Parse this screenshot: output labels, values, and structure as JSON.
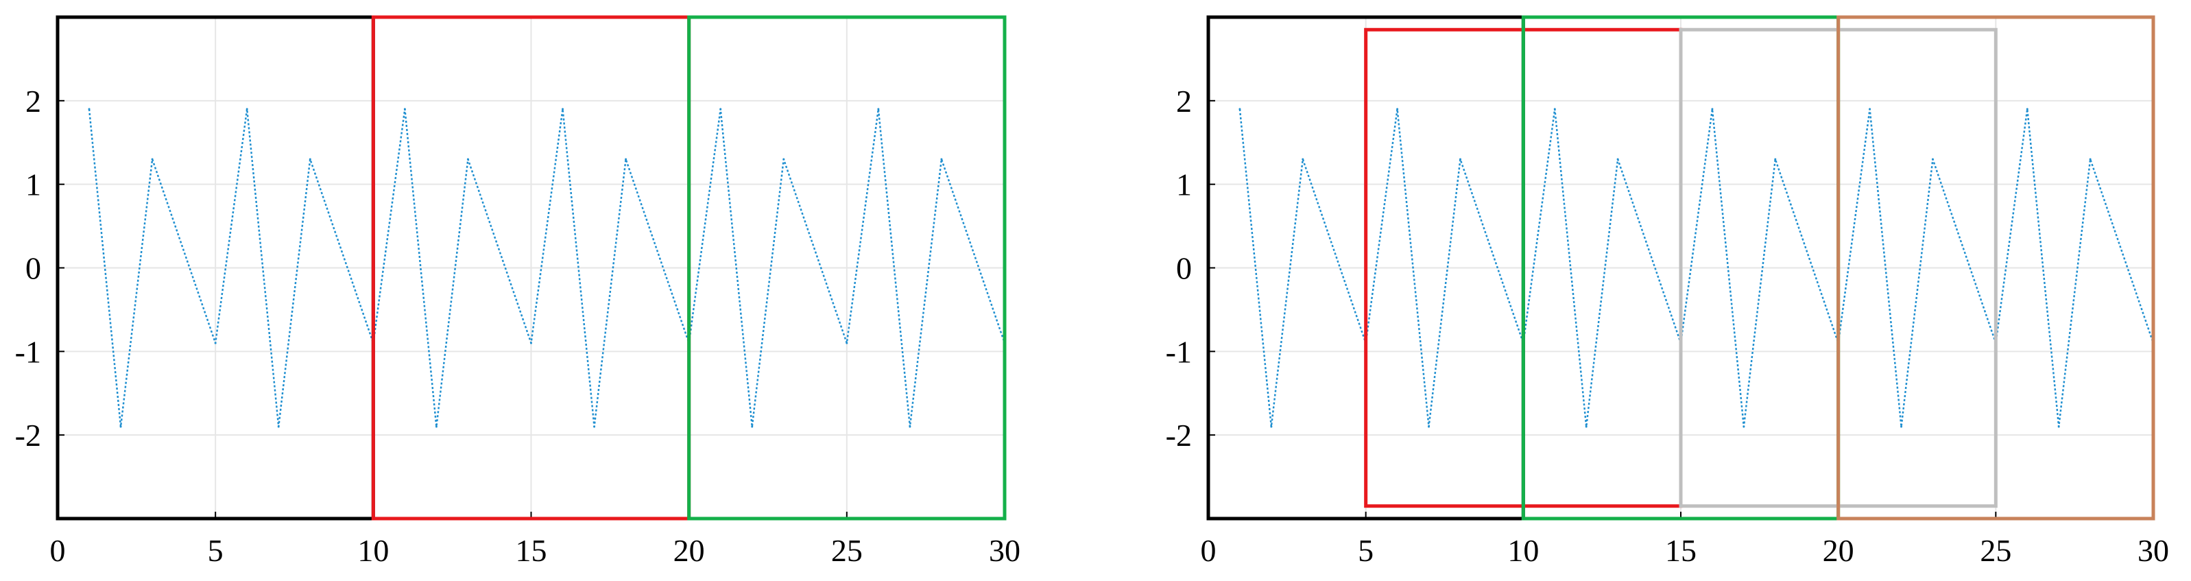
{
  "charts": [
    {
      "type": "line",
      "title": "",
      "xlabel": "",
      "ylabel": "",
      "xlim": [
        0,
        30
      ],
      "ylim": [
        -3,
        3
      ],
      "grid": true,
      "xticks": [
        0,
        5,
        10,
        15,
        20,
        25,
        30
      ],
      "xtick_labels": [
        "0",
        "5",
        "10",
        "15",
        "20",
        "25",
        "30"
      ],
      "yticks": [
        -2,
        -1,
        0,
        1,
        2
      ],
      "ytick_labels": [
        "-2",
        "-1",
        "0",
        "1",
        "2"
      ],
      "series_color": "#1f8fd0",
      "windows": [
        {
          "x_start": 0,
          "x_end": 10,
          "y_start": -3,
          "y_end": 3,
          "color": "#000000"
        },
        {
          "x_start": 10,
          "x_end": 20,
          "y_start": -3,
          "y_end": 3,
          "color": "#e8191e"
        },
        {
          "x_start": 20,
          "x_end": 30,
          "y_start": -3,
          "y_end": 3,
          "color": "#14b04a"
        }
      ]
    },
    {
      "type": "line",
      "title": "",
      "xlabel": "",
      "ylabel": "",
      "xlim": [
        0,
        30
      ],
      "ylim": [
        -3,
        3
      ],
      "grid": true,
      "xticks": [
        0,
        5,
        10,
        15,
        20,
        25,
        30
      ],
      "xtick_labels": [
        "0",
        "5",
        "10",
        "15",
        "20",
        "25",
        "30"
      ],
      "yticks": [
        -2,
        -1,
        0,
        1,
        2
      ],
      "ytick_labels": [
        "-2",
        "-1",
        "0",
        "1",
        "2"
      ],
      "series_color": "#1f8fd0",
      "windows": [
        {
          "x_start": 0,
          "x_end": 10,
          "y_start": -3,
          "y_end": 3,
          "color": "#000000"
        },
        {
          "x_start": 5,
          "x_end": 15,
          "y_start": -2.85,
          "y_end": 2.85,
          "color": "#e8191e"
        },
        {
          "x_start": 10,
          "x_end": 20,
          "y_start": -3,
          "y_end": 3,
          "color": "#14b04a"
        },
        {
          "x_start": 15,
          "x_end": 25,
          "y_start": -2.85,
          "y_end": 2.85,
          "color": "#bfbfbf"
        },
        {
          "x_start": 20,
          "x_end": 30,
          "y_start": -3,
          "y_end": 3,
          "color": "#c8825a"
        }
      ]
    }
  ],
  "chart_data": {
    "type": "line",
    "title": "",
    "xlabel": "",
    "ylabel": "",
    "xlim": [
      0,
      30
    ],
    "ylim": [
      -3,
      3
    ],
    "series": [
      {
        "x": [
          1,
          2,
          3,
          5,
          6,
          7,
          8,
          10,
          11,
          12,
          13,
          15,
          16,
          17,
          18,
          20,
          21,
          22,
          23,
          25,
          26,
          27,
          28,
          30
        ],
        "values": [
          1.9,
          -1.9,
          1.3,
          -0.9,
          1.9,
          -1.9,
          1.3,
          -0.9,
          1.9,
          -1.9,
          1.3,
          -0.9,
          1.9,
          -1.9,
          1.3,
          -0.9,
          1.9,
          -1.9,
          1.3,
          -0.9,
          1.9,
          -1.9,
          1.3,
          -0.9
        ]
      }
    ]
  }
}
